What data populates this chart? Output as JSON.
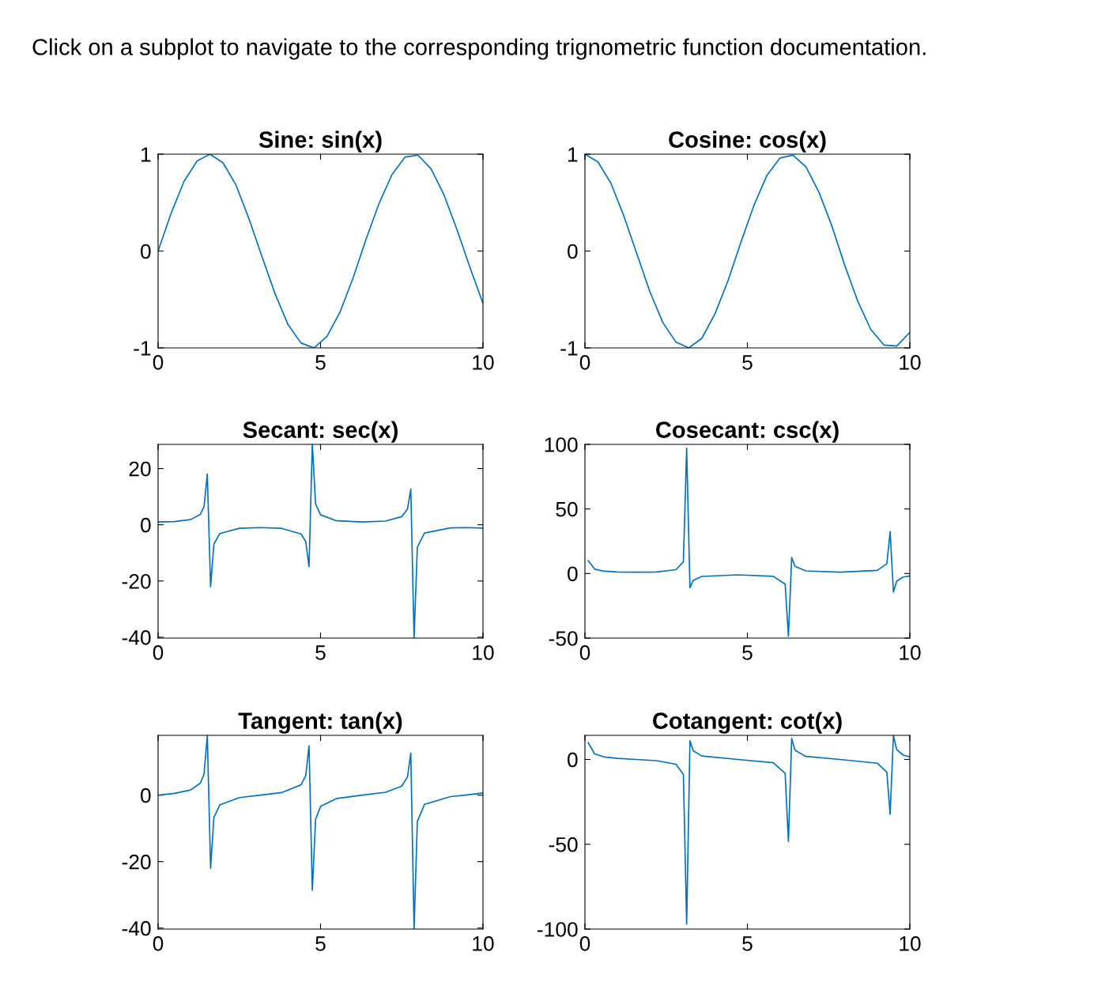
{
  "chart_data": [
    {
      "type": "line",
      "title": "Sine: sin(x)",
      "annotations": [
        "Click on a subplot to navigate to the corresponding trignometric function documentation."
      ],
      "xlim": [
        0,
        10
      ],
      "xticks": [
        0,
        5,
        10
      ],
      "ylim": [
        -1,
        1
      ],
      "yticks": [
        -1,
        0,
        1
      ],
      "grid": false,
      "legend": false,
      "series": [
        {
          "color": "#0072bd",
          "x": [
            0,
            0.4,
            0.8,
            1.2,
            1.6,
            2.0,
            2.4,
            2.8,
            3.2,
            3.6,
            4.0,
            4.4,
            4.8,
            5.2,
            5.6,
            6.0,
            6.4,
            6.8,
            7.2,
            7.6,
            8.0,
            8.4,
            8.8,
            9.2,
            9.6,
            10.0
          ],
          "values": [
            0,
            0.39,
            0.72,
            0.93,
            1.0,
            0.91,
            0.68,
            0.33,
            -0.06,
            -0.44,
            -0.76,
            -0.95,
            -1.0,
            -0.88,
            -0.63,
            -0.28,
            0.12,
            0.49,
            0.79,
            0.97,
            0.99,
            0.85,
            0.58,
            0.22,
            -0.17,
            -0.54
          ]
        }
      ]
    },
    {
      "type": "line",
      "title": "Cosine: cos(x)",
      "xlim": [
        0,
        10
      ],
      "xticks": [
        0,
        5,
        10
      ],
      "ylim": [
        -1,
        1
      ],
      "yticks": [
        -1,
        0,
        1
      ],
      "grid": false,
      "legend": false,
      "series": [
        {
          "color": "#0072bd",
          "x": [
            0,
            0.4,
            0.8,
            1.2,
            1.6,
            2.0,
            2.4,
            2.8,
            3.2,
            3.6,
            4.0,
            4.4,
            4.8,
            5.2,
            5.6,
            6.0,
            6.4,
            6.8,
            7.2,
            7.6,
            8.0,
            8.4,
            8.8,
            9.2,
            9.6,
            10.0
          ],
          "values": [
            1,
            0.92,
            0.7,
            0.36,
            -0.03,
            -0.42,
            -0.74,
            -0.94,
            -1.0,
            -0.9,
            -0.65,
            -0.31,
            0.09,
            0.47,
            0.78,
            0.96,
            0.99,
            0.87,
            0.61,
            0.26,
            -0.15,
            -0.52,
            -0.81,
            -0.97,
            -0.98,
            -0.84
          ]
        }
      ]
    },
    {
      "type": "line",
      "title": "Secant: sec(x)",
      "xlim": [
        0,
        10
      ],
      "xticks": [
        0,
        5,
        10
      ],
      "ylim": [
        -40.3,
        28.6
      ],
      "yticks": [
        -40,
        -20,
        0,
        20
      ],
      "grid": false,
      "legend": false,
      "series": [
        {
          "color": "#0072bd",
          "x": [
            0,
            0.5,
            1.0,
            1.3,
            1.414,
            1.515,
            1.616,
            1.717,
            1.9,
            2.5,
            3.14,
            3.8,
            4.4,
            4.545,
            4.646,
            4.747,
            4.848,
            5.0,
            5.5,
            6.28,
            7.0,
            7.5,
            7.677,
            7.778,
            7.879,
            7.98,
            8.2,
            9.0,
            9.5,
            10.0
          ],
          "values": [
            1,
            1.14,
            1.85,
            3.74,
            6.4,
            18.0,
            -22.0,
            -6.9,
            -3.09,
            -1.25,
            -1.0,
            -1.26,
            -3.25,
            -6.0,
            -14.9,
            28.6,
            7.4,
            3.53,
            1.41,
            1.0,
            1.33,
            2.89,
            5.6,
            12.7,
            -40.3,
            -7.97,
            -2.95,
            -1.1,
            -1.0,
            -1.19
          ]
        }
      ]
    },
    {
      "type": "line",
      "title": "Cosecant: csc(x)",
      "xlim": [
        0,
        10
      ],
      "xticks": [
        0,
        5,
        10
      ],
      "ylim": [
        -50,
        100
      ],
      "yticks": [
        -50,
        0,
        50,
        100
      ],
      "grid": false,
      "legend": false,
      "series": [
        {
          "color": "#0072bd",
          "x": [
            0.101,
            0.3,
            0.6,
            1.0,
            1.57,
            2.2,
            2.8,
            3.03,
            3.131,
            3.232,
            3.333,
            3.6,
            4.71,
            5.8,
            6.162,
            6.263,
            6.364,
            6.465,
            6.8,
            7.85,
            9.0,
            9.293,
            9.394,
            9.495,
            9.596,
            9.8,
            10.0
          ],
          "values": [
            9.92,
            3.38,
            1.77,
            1.19,
            1.0,
            1.24,
            2.98,
            9.0,
            97.1,
            -11.0,
            -5.25,
            -2.26,
            -1.0,
            -2.15,
            -8.2,
            -48.6,
            12.4,
            5.54,
            2.02,
            1.0,
            2.43,
            7.6,
            32.4,
            -14.3,
            -5.87,
            -2.73,
            -1.84
          ]
        }
      ]
    },
    {
      "type": "line",
      "title": "Tangent: tan(x)",
      "xlim": [
        0,
        10
      ],
      "xticks": [
        0,
        5,
        10
      ],
      "ylim": [
        -40.3,
        18
      ],
      "yticks": [
        -40,
        -20,
        0
      ],
      "grid": false,
      "legend": false,
      "series": [
        {
          "color": "#0072bd",
          "x": [
            0,
            0.5,
            1.0,
            1.3,
            1.414,
            1.515,
            1.616,
            1.717,
            1.9,
            2.5,
            3.14,
            3.8,
            4.4,
            4.545,
            4.646,
            4.747,
            4.848,
            5.0,
            5.5,
            6.28,
            7.0,
            7.5,
            7.677,
            7.778,
            7.879,
            7.98,
            8.2,
            9.0,
            9.5,
            10.0
          ],
          "values": [
            0,
            0.55,
            1.56,
            3.6,
            6.3,
            18.0,
            -22.0,
            -6.8,
            -2.93,
            -0.75,
            0,
            0.77,
            3.1,
            5.9,
            14.9,
            -28.6,
            -7.3,
            -3.38,
            -0.99,
            0,
            0.87,
            2.71,
            5.5,
            12.7,
            -40.3,
            -7.9,
            -2.78,
            -0.45,
            0.07,
            0.65
          ]
        }
      ]
    },
    {
      "type": "line",
      "title": "Cotangent: cot(x)",
      "xlim": [
        0,
        10
      ],
      "xticks": [
        0,
        5,
        10
      ],
      "ylim": [
        -100,
        14.2
      ],
      "yticks": [
        -100,
        -50,
        0
      ],
      "grid": false,
      "legend": false,
      "series": [
        {
          "color": "#0072bd",
          "x": [
            0.101,
            0.3,
            0.6,
            1.0,
            1.57,
            2.2,
            2.8,
            3.03,
            3.131,
            3.232,
            3.333,
            3.6,
            4.71,
            5.8,
            6.162,
            6.263,
            6.364,
            6.465,
            6.8,
            7.85,
            9.0,
            9.293,
            9.394,
            9.495,
            9.596,
            9.8,
            10.0
          ],
          "values": [
            9.87,
            3.23,
            1.46,
            0.64,
            0,
            -0.73,
            -2.81,
            -8.9,
            -97.1,
            11.0,
            5.15,
            2.03,
            0,
            -1.91,
            -8.2,
            -48.5,
            12.4,
            5.45,
            1.76,
            0,
            -2.21,
            -7.5,
            -32.4,
            14.2,
            5.78,
            2.54,
            1.54
          ]
        }
      ]
    }
  ]
}
